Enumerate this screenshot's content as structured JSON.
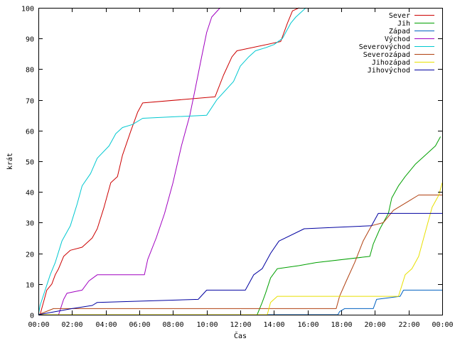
{
  "chart_data": {
    "type": "line",
    "xlabel": "Čas",
    "ylabel": "krát",
    "xlim": [
      0,
      24
    ],
    "ylim": [
      0,
      100
    ],
    "x_ticks": [
      {
        "value": 0,
        "label": "00:00"
      },
      {
        "value": 2,
        "label": "02:00"
      },
      {
        "value": 4,
        "label": "04:00"
      },
      {
        "value": 6,
        "label": "06:00"
      },
      {
        "value": 8,
        "label": "08:00"
      },
      {
        "value": 10,
        "label": "10:00"
      },
      {
        "value": 12,
        "label": "12:00"
      },
      {
        "value": 14,
        "label": "14:00"
      },
      {
        "value": 16,
        "label": "16:00"
      },
      {
        "value": 18,
        "label": "18:00"
      },
      {
        "value": 20,
        "label": "20:00"
      },
      {
        "value": 22,
        "label": "22:00"
      },
      {
        "value": 24,
        "label": "00:00"
      }
    ],
    "y_ticks": [
      {
        "value": 0,
        "label": "0"
      },
      {
        "value": 10,
        "label": "10"
      },
      {
        "value": 20,
        "label": "20"
      },
      {
        "value": 30,
        "label": "30"
      },
      {
        "value": 40,
        "label": "40"
      },
      {
        "value": 50,
        "label": "50"
      },
      {
        "value": 60,
        "label": "60"
      },
      {
        "value": 70,
        "label": "70"
      },
      {
        "value": 80,
        "label": "80"
      },
      {
        "value": 90,
        "label": "90"
      },
      {
        "value": 100,
        "label": "100"
      }
    ],
    "grid": false,
    "legend_position": "top-right",
    "series": [
      {
        "name": "Sever",
        "color": "#cc0000",
        "points": [
          [
            0.1,
            0
          ],
          [
            0.2,
            2
          ],
          [
            0.35,
            5
          ],
          [
            0.5,
            8
          ],
          [
            0.8,
            10
          ],
          [
            1.0,
            13
          ],
          [
            1.2,
            15
          ],
          [
            1.5,
            19
          ],
          [
            1.9,
            21
          ],
          [
            2.6,
            22
          ],
          [
            3.2,
            25
          ],
          [
            3.5,
            28
          ],
          [
            3.9,
            35
          ],
          [
            4.3,
            43
          ],
          [
            4.7,
            45
          ],
          [
            5.0,
            52
          ],
          [
            5.5,
            60
          ],
          [
            5.9,
            66
          ],
          [
            6.2,
            69
          ],
          [
            10.5,
            71
          ],
          [
            11.0,
            78
          ],
          [
            11.5,
            84
          ],
          [
            11.8,
            86
          ],
          [
            14.4,
            89
          ],
          [
            14.8,
            95
          ],
          [
            15.1,
            99
          ],
          [
            15.5,
            100
          ]
        ]
      },
      {
        "name": "Jih",
        "color": "#00a000",
        "points": [
          [
            0,
            0
          ],
          [
            13.0,
            0
          ],
          [
            13.3,
            4
          ],
          [
            13.5,
            7
          ],
          [
            13.8,
            12
          ],
          [
            14.2,
            15
          ],
          [
            15.5,
            16
          ],
          [
            16.5,
            17
          ],
          [
            19.7,
            19
          ],
          [
            19.9,
            23
          ],
          [
            20.3,
            28
          ],
          [
            20.8,
            33
          ],
          [
            21.0,
            38
          ],
          [
            21.4,
            42
          ],
          [
            21.8,
            45
          ],
          [
            22.4,
            49
          ],
          [
            23.0,
            52
          ],
          [
            23.6,
            55
          ],
          [
            23.9,
            58
          ]
        ]
      },
      {
        "name": "Západ",
        "color": "#0060c0",
        "points": [
          [
            0,
            0
          ],
          [
            17.8,
            0
          ],
          [
            17.9,
            1
          ],
          [
            18.2,
            2
          ],
          [
            19.9,
            2
          ],
          [
            20.1,
            5
          ],
          [
            21.5,
            6
          ],
          [
            21.7,
            8
          ],
          [
            24,
            8
          ]
        ]
      },
      {
        "name": "Východ",
        "color": "#a000c0",
        "points": [
          [
            0,
            0
          ],
          [
            1.2,
            0
          ],
          [
            1.5,
            5
          ],
          [
            1.7,
            7
          ],
          [
            2.6,
            8
          ],
          [
            3.0,
            11
          ],
          [
            3.5,
            13
          ],
          [
            6.3,
            13
          ],
          [
            6.5,
            18
          ],
          [
            7.0,
            25
          ],
          [
            7.5,
            33
          ],
          [
            8.0,
            43
          ],
          [
            8.5,
            55
          ],
          [
            9.0,
            65
          ],
          [
            9.3,
            73
          ],
          [
            9.7,
            84
          ],
          [
            10.0,
            92
          ],
          [
            10.3,
            97
          ],
          [
            10.8,
            100
          ]
        ]
      },
      {
        "name": "Severovýchod",
        "color": "#00c8d0",
        "points": [
          [
            0,
            0
          ],
          [
            0.1,
            3
          ],
          [
            0.4,
            8
          ],
          [
            0.7,
            13
          ],
          [
            1.0,
            17
          ],
          [
            1.4,
            24
          ],
          [
            1.9,
            29
          ],
          [
            2.3,
            36
          ],
          [
            2.6,
            42
          ],
          [
            3.1,
            46
          ],
          [
            3.5,
            51
          ],
          [
            4.2,
            55
          ],
          [
            4.6,
            59
          ],
          [
            5.0,
            61
          ],
          [
            5.6,
            62
          ],
          [
            6.2,
            64
          ],
          [
            10.0,
            65
          ],
          [
            10.6,
            70
          ],
          [
            11.6,
            76
          ],
          [
            12.0,
            81
          ],
          [
            12.5,
            84
          ],
          [
            12.9,
            86
          ],
          [
            13.5,
            87
          ],
          [
            14.0,
            88
          ],
          [
            14.5,
            90
          ],
          [
            15.0,
            95
          ],
          [
            15.3,
            97
          ],
          [
            15.9,
            100
          ]
        ]
      },
      {
        "name": "Severozápad",
        "color": "#b04010",
        "points": [
          [
            0,
            0
          ],
          [
            0.9,
            2
          ],
          [
            17.7,
            2
          ],
          [
            17.9,
            6
          ],
          [
            18.3,
            11
          ],
          [
            18.8,
            17
          ],
          [
            19.3,
            24
          ],
          [
            19.8,
            29
          ],
          [
            20.5,
            30
          ],
          [
            21.1,
            34
          ],
          [
            22.0,
            37
          ],
          [
            22.6,
            39
          ],
          [
            24,
            39
          ]
        ]
      },
      {
        "name": "Jihozápad",
        "color": "#e8e000",
        "points": [
          [
            0,
            0
          ],
          [
            13.6,
            0
          ],
          [
            13.8,
            4
          ],
          [
            14.2,
            6
          ],
          [
            21.4,
            6
          ],
          [
            21.8,
            13
          ],
          [
            22.2,
            15
          ],
          [
            22.6,
            19
          ],
          [
            23.0,
            27
          ],
          [
            23.4,
            35
          ],
          [
            23.8,
            39
          ],
          [
            24,
            43
          ]
        ]
      },
      {
        "name": "Jihovýchod",
        "color": "#0000a0",
        "points": [
          [
            0,
            0
          ],
          [
            2.0,
            2
          ],
          [
            3.2,
            3
          ],
          [
            3.5,
            4
          ],
          [
            9.5,
            5
          ],
          [
            10.0,
            8
          ],
          [
            12.3,
            8
          ],
          [
            12.8,
            13
          ],
          [
            13.3,
            15
          ],
          [
            13.8,
            20
          ],
          [
            14.3,
            24
          ],
          [
            15.8,
            28
          ],
          [
            19.8,
            29
          ],
          [
            20.2,
            33
          ],
          [
            24,
            33
          ]
        ]
      }
    ]
  }
}
